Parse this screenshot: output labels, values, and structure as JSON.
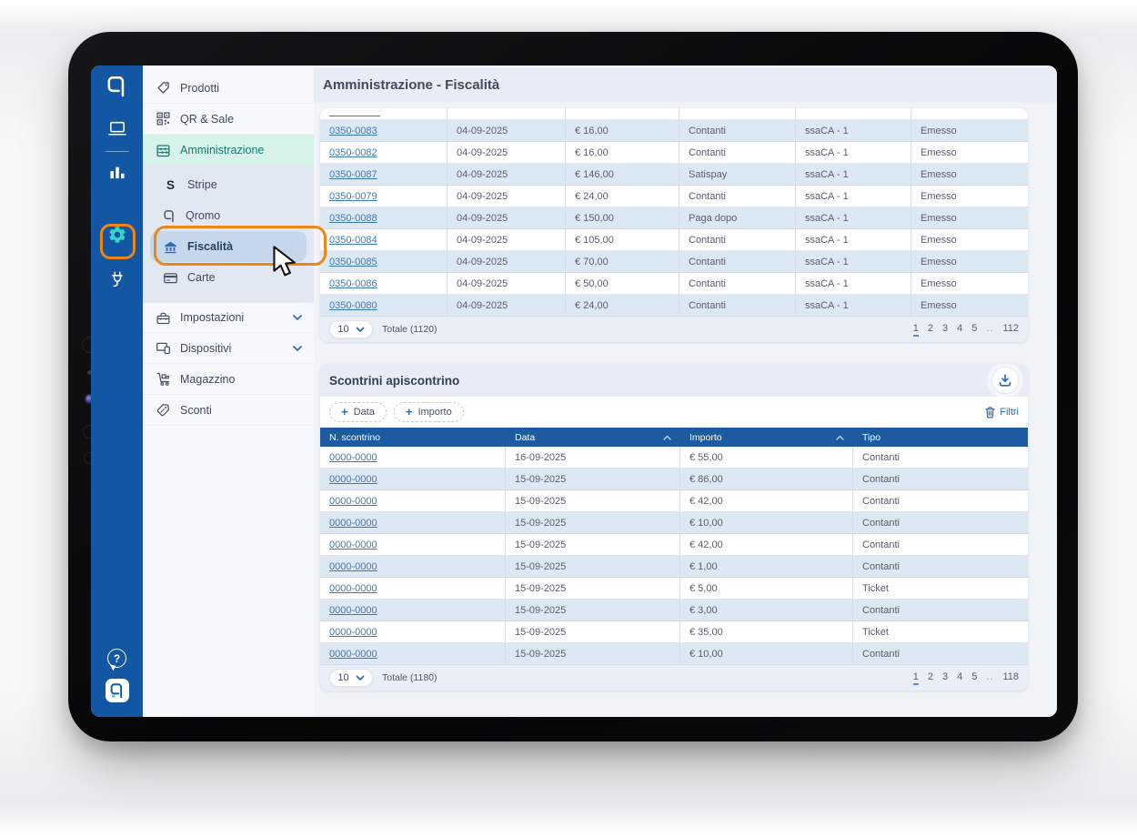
{
  "colors": {
    "highlight_orange": "#EE8617",
    "rail_blue": "#1356A4",
    "accent_teal": "#35D6C8",
    "table_header_blue": "#1C5BA2",
    "link_blue": "#3C7AC0"
  },
  "page_title": "Amministrazione - Fiscalità",
  "rail": {
    "help_glyph": "?",
    "icons": [
      "qromo-logo-icon",
      "pos-terminal-icon",
      "analytics-icon",
      "settings-gear-icon",
      "plug-icon",
      "help-icon",
      "qromo-app-icon"
    ]
  },
  "sidebar": {
    "items": [
      {
        "label": "Prodotti",
        "icon": "tag-icon"
      },
      {
        "label": "QR & Sale",
        "icon": "qr-code-icon"
      },
      {
        "label": "Amministrazione",
        "icon": "abacus-icon",
        "active": true
      }
    ],
    "submenu": [
      {
        "label": "Stripe",
        "icon": "stripe-s-icon",
        "glyph": "S"
      },
      {
        "label": "Qromo",
        "icon": "qromo-logo-icon"
      },
      {
        "label": "Fiscalità",
        "icon": "bank-icon",
        "selected": true
      },
      {
        "label": "Carte",
        "icon": "card-icon"
      }
    ],
    "items2": [
      {
        "label": "Impostazioni",
        "icon": "toolbox-icon",
        "expandable": true
      },
      {
        "label": "Dispositivi",
        "icon": "devices-icon",
        "expandable": true
      },
      {
        "label": "Magazzino",
        "icon": "warehouse-icon"
      },
      {
        "label": "Sconti",
        "icon": "discount-icon"
      }
    ]
  },
  "fiscal_table": {
    "rows": [
      [
        "0350-0083",
        "04-09-2025",
        "€ 16,00",
        "Contanti",
        "ssaCA - 1",
        "Emesso"
      ],
      [
        "0350-0082",
        "04-09-2025",
        "€ 16,00",
        "Contanti",
        "ssaCA - 1",
        "Emesso"
      ],
      [
        "0350-0087",
        "04-09-2025",
        "€ 146,00",
        "Satispay",
        "ssaCA - 1",
        "Emesso"
      ],
      [
        "0350-0079",
        "04-09-2025",
        "€ 24,00",
        "Contanti",
        "ssaCA - 1",
        "Emesso"
      ],
      [
        "0350-0088",
        "04-09-2025",
        "€ 150,00",
        "Paga dopo",
        "ssaCA - 1",
        "Emesso"
      ],
      [
        "0350-0084",
        "04-09-2025",
        "€ 105,00",
        "Contanti",
        "ssaCA - 1",
        "Emesso"
      ],
      [
        "0350-0085",
        "04-09-2025",
        "€ 70,00",
        "Contanti",
        "ssaCA - 1",
        "Emesso"
      ],
      [
        "0350-0086",
        "04-09-2025",
        "€ 50,00",
        "Contanti",
        "ssaCA - 1",
        "Emesso"
      ],
      [
        "0350-0080",
        "04-09-2025",
        "€ 24,00",
        "Contanti",
        "ssaCA - 1",
        "Emesso"
      ]
    ],
    "footer": {
      "page_size": "10",
      "total": "Totale (1120)",
      "pages": [
        "1",
        "2",
        "3",
        "4",
        "5",
        "..",
        "112"
      ]
    }
  },
  "receipts_card": {
    "title": "Scontrini apiscontrino",
    "chips": [
      {
        "plus": "+",
        "label": "Data"
      },
      {
        "plus": "+",
        "label": "Importo"
      }
    ],
    "filters_label": "Filtri",
    "headers": [
      "N. scontrino",
      "Data",
      "Importo",
      "Tipo"
    ],
    "rows": [
      [
        "0000-0000",
        "16-09-2025",
        "€ 55,00",
        "Contanti"
      ],
      [
        "0000-0000",
        "15-09-2025",
        "€ 86,00",
        "Contanti"
      ],
      [
        "0000-0000",
        "15-09-2025",
        "€ 42,00",
        "Contanti"
      ],
      [
        "0000-0000",
        "15-09-2025",
        "€ 10,00",
        "Contanti"
      ],
      [
        "0000-0000",
        "15-09-2025",
        "€ 42,00",
        "Contanti"
      ],
      [
        "0000-0000",
        "15-09-2025",
        "€ 1,00",
        "Contanti"
      ],
      [
        "0000-0000",
        "15-09-2025",
        "€ 5,00",
        "Ticket"
      ],
      [
        "0000-0000",
        "15-09-2025",
        "€ 3,00",
        "Contanti"
      ],
      [
        "0000-0000",
        "15-09-2025",
        "€ 35,00",
        "Ticket"
      ],
      [
        "0000-0000",
        "15-09-2025",
        "€ 10,00",
        "Contanti"
      ]
    ],
    "footer": {
      "page_size": "10",
      "total": "Totale (1180)",
      "pages": [
        "1",
        "2",
        "3",
        "4",
        "5",
        "..",
        "118"
      ]
    }
  }
}
